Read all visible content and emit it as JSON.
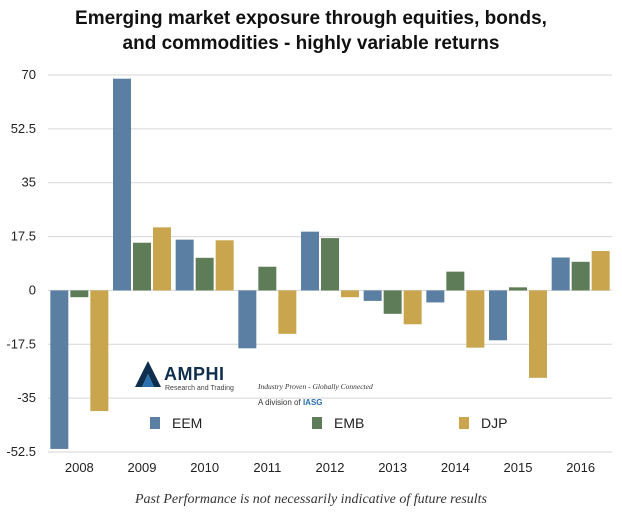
{
  "chart_data": {
    "type": "bar",
    "title": "Emerging market exposure through equities, bonds, and commodities - highly variable returns",
    "title_lines": [
      "Emerging market exposure through equities, bonds,",
      "and commodities - highly variable returns"
    ],
    "categories": [
      "2008",
      "2009",
      "2010",
      "2011",
      "2012",
      "2013",
      "2014",
      "2015",
      "2016"
    ],
    "series": [
      {
        "name": "EEM",
        "color": "#5b7fa3",
        "values": [
          -51.5,
          68.8,
          16.5,
          -18.8,
          19.1,
          -3.4,
          -3.9,
          -16.2,
          10.7
        ]
      },
      {
        "name": "EMB",
        "color": "#5e7c58",
        "values": [
          -2.2,
          15.5,
          10.6,
          7.7,
          17.0,
          -7.6,
          6.1,
          1.0,
          9.3
        ]
      },
      {
        "name": "DJP",
        "color": "#c9a64e",
        "values": [
          -39.2,
          20.5,
          16.3,
          -14.1,
          -2.2,
          -11.0,
          -18.6,
          -28.4,
          12.8
        ]
      }
    ],
    "y_ticks": [
      "70",
      "52.5",
      "35",
      "17.5",
      "0",
      "-17.5",
      "-35",
      "-52.5"
    ],
    "ylim": [
      -52.5,
      70
    ],
    "grid": true,
    "legend_position": "bottom-inside"
  },
  "logo": {
    "name": "AMPHI",
    "subtitle": "Research and Trading",
    "tagline": "Industry Proven - Globally Connected",
    "division_prefix": "A division of",
    "division_name": "IASG"
  },
  "caption": "Past Performance is not necessarily indicative of future results"
}
